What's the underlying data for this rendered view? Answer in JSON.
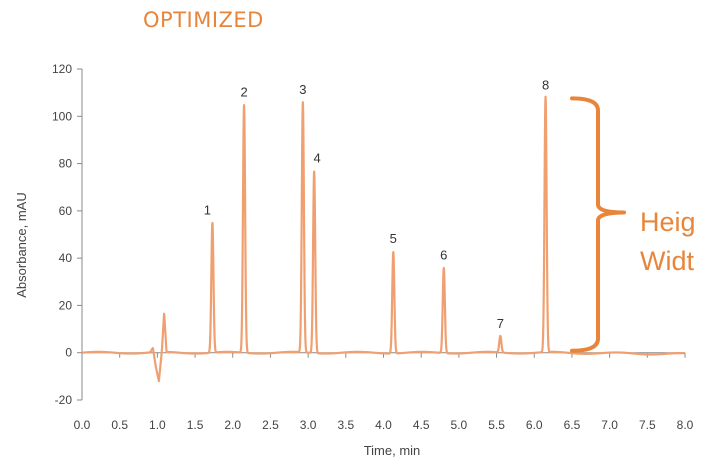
{
  "chart_data": {
    "type": "line",
    "title": "OPTIMIZED",
    "xlabel": "Time, min",
    "ylabel": "Absorbance, mAU",
    "xlim": [
      0.0,
      8.0
    ],
    "ylim": [
      -20,
      120
    ],
    "x_ticks": [
      "0.0",
      "0.5",
      "1.0",
      "1.5",
      "2.0",
      "2.5",
      "3.0",
      "3.5",
      "4.0",
      "4.5",
      "5.0",
      "5.5",
      "6.0",
      "6.5",
      "7.0",
      "7.5",
      "8.0"
    ],
    "y_ticks": [
      "-20",
      "0",
      "20",
      "40",
      "60",
      "80",
      "100",
      "120"
    ],
    "grid": false,
    "line_color": "#f0a070",
    "accent_color": "#e8853a",
    "peaks": [
      {
        "label": "1",
        "x": 1.73,
        "y": 55
      },
      {
        "label": "2",
        "x": 2.15,
        "y": 105
      },
      {
        "label": "3",
        "x": 2.93,
        "y": 106
      },
      {
        "label": "4",
        "x": 3.08,
        "y": 77
      },
      {
        "label": "5",
        "x": 4.13,
        "y": 43
      },
      {
        "label": "6",
        "x": 4.8,
        "y": 36
      },
      {
        "label": "7",
        "x": 5.55,
        "y": 7
      },
      {
        "label": "8",
        "x": 6.15,
        "y": 108
      }
    ],
    "disturbance": [
      {
        "x": 0.9,
        "y": 0
      },
      {
        "x": 0.94,
        "y": 2
      },
      {
        "x": 0.98,
        "y": -6
      },
      {
        "x": 1.02,
        "y": -12
      },
      {
        "x": 1.06,
        "y": 1
      },
      {
        "x": 1.09,
        "y": 17
      },
      {
        "x": 1.12,
        "y": 1
      }
    ],
    "annotation": {
      "lines": [
        "Heig",
        "Widt"
      ],
      "bracket_top": 108,
      "bracket_bottom": 0
    }
  }
}
